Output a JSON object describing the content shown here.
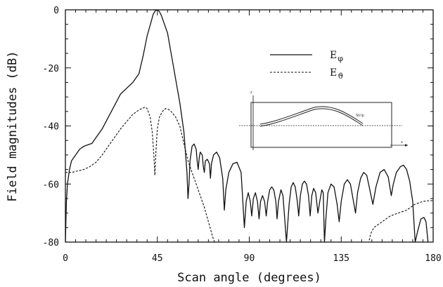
{
  "chart_data": {
    "type": "line",
    "xlabel": "Scan angle (degrees)",
    "ylabel": "Field magnitudes (dB)",
    "xlim": [
      0,
      180
    ],
    "ylim": [
      -80,
      0
    ],
    "xticks": [
      "0",
      "45",
      "90",
      "135",
      "180"
    ],
    "yticks": [
      "0",
      "-20",
      "-40",
      "-60",
      "-80"
    ],
    "grid": false,
    "legend_position": "top-right",
    "series": [
      {
        "name": "E_φ",
        "style": "solid",
        "points": [
          [
            0,
            -80
          ],
          [
            0.5,
            -66
          ],
          [
            1,
            -60
          ],
          [
            2,
            -55
          ],
          [
            3,
            -52
          ],
          [
            5,
            -50
          ],
          [
            7,
            -48
          ],
          [
            9,
            -47
          ],
          [
            11,
            -46.5
          ],
          [
            13,
            -46
          ],
          [
            15,
            -44
          ],
          [
            18,
            -41
          ],
          [
            21,
            -37
          ],
          [
            24,
            -33
          ],
          [
            27,
            -29
          ],
          [
            30,
            -27
          ],
          [
            33,
            -25
          ],
          [
            36,
            -22
          ],
          [
            38,
            -16
          ],
          [
            40,
            -9
          ],
          [
            42,
            -4
          ],
          [
            43,
            -1.5
          ],
          [
            44,
            -0.3
          ],
          [
            45,
            0
          ],
          [
            46,
            -0.6
          ],
          [
            47,
            -2
          ],
          [
            48,
            -4
          ],
          [
            50,
            -8
          ],
          [
            52,
            -16
          ],
          [
            54,
            -24
          ],
          [
            56,
            -32
          ],
          [
            58,
            -42
          ],
          [
            59.5,
            -56
          ],
          [
            60,
            -65
          ],
          [
            60.5,
            -60
          ],
          [
            61,
            -52
          ],
          [
            62,
            -47
          ],
          [
            63,
            -46.2
          ],
          [
            64,
            -48
          ],
          [
            64.5,
            -52
          ],
          [
            65,
            -55
          ],
          [
            65.5,
            -51
          ],
          [
            66,
            -49
          ],
          [
            67,
            -50
          ],
          [
            67.5,
            -54
          ],
          [
            68,
            -56
          ],
          [
            68.5,
            -52
          ],
          [
            69.5,
            -51.5
          ],
          [
            70.5,
            -53
          ],
          [
            71,
            -58
          ],
          [
            71.5,
            -53
          ],
          [
            72.5,
            -50
          ],
          [
            74,
            -49
          ],
          [
            75.5,
            -51
          ],
          [
            77,
            -58
          ],
          [
            77.8,
            -69
          ],
          [
            78.5,
            -62
          ],
          [
            80,
            -56
          ],
          [
            82,
            -53
          ],
          [
            84,
            -52.5
          ],
          [
            86,
            -56
          ],
          [
            87.6,
            -75
          ],
          [
            88.5,
            -66
          ],
          [
            89.5,
            -63
          ],
          [
            90.5,
            -66
          ],
          [
            91.2,
            -71
          ],
          [
            92,
            -65
          ],
          [
            93,
            -63
          ],
          [
            94,
            -66
          ],
          [
            94.8,
            -72
          ],
          [
            95.5,
            -66
          ],
          [
            96.5,
            -64
          ],
          [
            97.5,
            -66
          ],
          [
            98.3,
            -71
          ],
          [
            99,
            -66
          ],
          [
            100,
            -62
          ],
          [
            101,
            -61
          ],
          [
            102,
            -62
          ],
          [
            103,
            -66
          ],
          [
            103.6,
            -72
          ],
          [
            104.3,
            -66
          ],
          [
            105.5,
            -62
          ],
          [
            106.5,
            -64
          ],
          [
            108.2,
            -80
          ],
          [
            109.5,
            -67
          ],
          [
            110.5,
            -61
          ],
          [
            111.5,
            -59.5
          ],
          [
            112.5,
            -61
          ],
          [
            113.5,
            -66
          ],
          [
            114.2,
            -71
          ],
          [
            115,
            -64
          ],
          [
            116,
            -60
          ],
          [
            117,
            -59
          ],
          [
            118,
            -60
          ],
          [
            119,
            -64
          ],
          [
            119.8,
            -71
          ],
          [
            120.6,
            -64
          ],
          [
            121.5,
            -61.5
          ],
          [
            122.5,
            -63
          ],
          [
            123.6,
            -70
          ],
          [
            124.5,
            -66
          ],
          [
            125.5,
            -62
          ],
          [
            126.2,
            -63
          ],
          [
            126.8,
            -80
          ],
          [
            127.5,
            -72
          ],
          [
            128.5,
            -63
          ],
          [
            130,
            -60
          ],
          [
            131.5,
            -61
          ],
          [
            133,
            -67
          ],
          [
            134,
            -73
          ],
          [
            135,
            -66
          ],
          [
            136.5,
            -60
          ],
          [
            138,
            -58.5
          ],
          [
            139.5,
            -60
          ],
          [
            141,
            -66
          ],
          [
            142,
            -70
          ],
          [
            143,
            -63
          ],
          [
            144.5,
            -58
          ],
          [
            146,
            -56
          ],
          [
            147.5,
            -57
          ],
          [
            149,
            -62
          ],
          [
            150.5,
            -67
          ],
          [
            152,
            -61
          ],
          [
            154,
            -56
          ],
          [
            156,
            -55
          ],
          [
            158,
            -57.5
          ],
          [
            159.5,
            -64
          ],
          [
            160.5,
            -60
          ],
          [
            162,
            -56
          ],
          [
            164,
            -54
          ],
          [
            165.5,
            -53.5
          ],
          [
            167,
            -55
          ],
          [
            168.5,
            -59
          ],
          [
            170,
            -66
          ],
          [
            171.2,
            -80
          ],
          [
            172.5,
            -76
          ],
          [
            174,
            -72
          ],
          [
            175.5,
            -71.5
          ],
          [
            176.5,
            -73
          ],
          [
            177.5,
            -80
          ]
        ]
      },
      {
        "name": "E_ϑ",
        "style": "dashed",
        "points": [
          [
            0,
            -56
          ],
          [
            3,
            -56
          ],
          [
            6,
            -55.5
          ],
          [
            9,
            -55
          ],
          [
            12,
            -54
          ],
          [
            15,
            -52.5
          ],
          [
            18,
            -50
          ],
          [
            21,
            -47
          ],
          [
            24,
            -44
          ],
          [
            27,
            -41
          ],
          [
            30,
            -38.5
          ],
          [
            33,
            -36
          ],
          [
            36,
            -34.5
          ],
          [
            39,
            -33.5
          ],
          [
            40,
            -34
          ],
          [
            41.5,
            -37
          ],
          [
            42.5,
            -42
          ],
          [
            43.3,
            -50
          ],
          [
            43.8,
            -57
          ],
          [
            44.3,
            -49
          ],
          [
            45,
            -41
          ],
          [
            46,
            -37
          ],
          [
            47.5,
            -35
          ],
          [
            49,
            -34
          ],
          [
            50.5,
            -34.3
          ],
          [
            52,
            -35.2
          ],
          [
            54,
            -37
          ],
          [
            56,
            -40
          ],
          [
            58,
            -46
          ],
          [
            60,
            -52
          ],
          [
            62,
            -56
          ],
          [
            64,
            -60
          ],
          [
            66,
            -64
          ],
          [
            68,
            -68
          ],
          [
            70,
            -73
          ],
          [
            72,
            -78
          ],
          [
            73,
            -80
          ],
          [
            148.5,
            -80
          ],
          [
            149.5,
            -77
          ],
          [
            151,
            -75
          ],
          [
            153,
            -74
          ],
          [
            155,
            -73
          ],
          [
            157,
            -72
          ],
          [
            159,
            -71
          ],
          [
            161,
            -70.5
          ],
          [
            163,
            -70
          ],
          [
            165,
            -69.5
          ],
          [
            167,
            -69
          ],
          [
            169,
            -68
          ],
          [
            171,
            -67
          ],
          [
            173,
            -66.5
          ],
          [
            175,
            -66
          ],
          [
            177,
            -65.8
          ],
          [
            180,
            -65.7
          ]
        ]
      }
    ]
  },
  "legend": [
    {
      "label": "E",
      "sub": "φ",
      "style": "solid"
    },
    {
      "label": "E",
      "sub": "ϑ",
      "style": "dashed"
    }
  ],
  "inset": {
    "axis_labels": {
      "z": "z",
      "x": "x"
    },
    "annotation": "Strip"
  }
}
